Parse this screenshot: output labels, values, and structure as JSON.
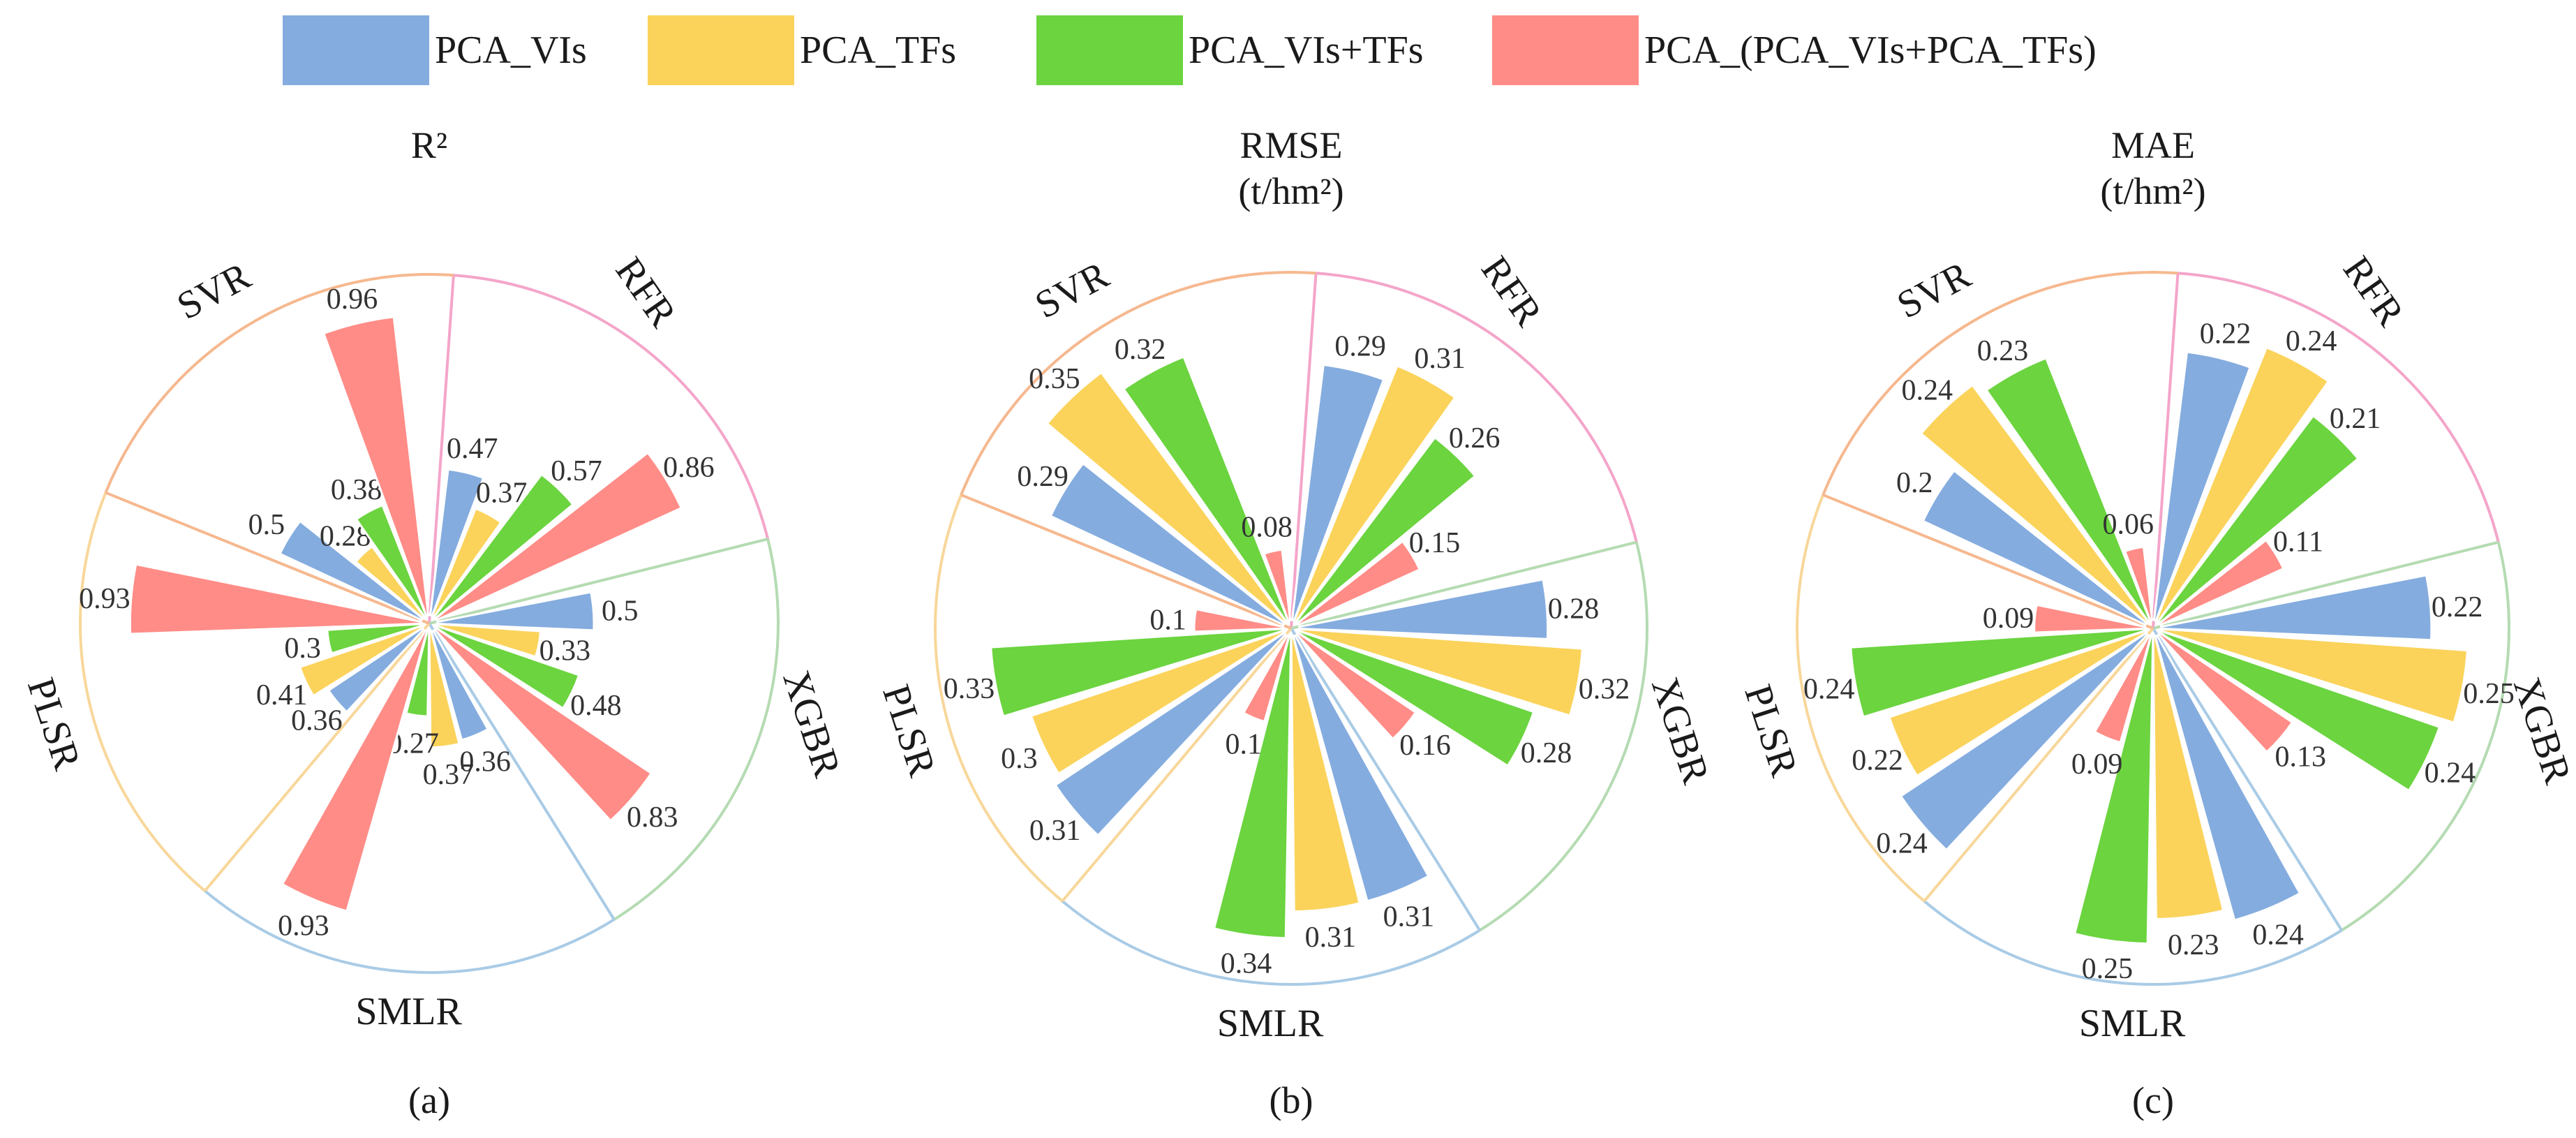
{
  "legend": [
    {
      "label": "PCA_VIs",
      "color": "#84acdf"
    },
    {
      "label": "PCA_TFs",
      "color": "#fbd35b"
    },
    {
      "label": "PCA_VIs+TFs",
      "color": "#6bd43f"
    },
    {
      "label": "PCA_(PCA_VIs+PCA_TFs)",
      "color": "#ff8c87"
    }
  ],
  "model_colors": {
    "RFR": "#f4a5c9",
    "XGBR": "#b5dbb2",
    "SMLR": "#a9cbe6",
    "PLSR": "#f8d79a",
    "SVR": "#f6b88f"
  },
  "chart_data": [
    {
      "type": "radial-bar",
      "title": "R²",
      "title_unit": "",
      "panel_label": "(a)",
      "rmax": 1.0,
      "categories": [
        "RFR",
        "XGBR",
        "SMLR",
        "PLSR",
        "SVR"
      ],
      "series": [
        {
          "name": "PCA_VIs",
          "values": [
            0.47,
            0.5,
            0.36,
            0.36,
            0.5
          ]
        },
        {
          "name": "PCA_TFs",
          "values": [
            0.37,
            0.33,
            0.37,
            0.41,
            0.28
          ]
        },
        {
          "name": "PCA_VIs+TFs",
          "values": [
            0.57,
            0.48,
            0.27,
            0.3,
            0.38
          ]
        },
        {
          "name": "PCA_(PCA_VIs+PCA_TFs)",
          "values": [
            0.86,
            0.83,
            0.93,
            0.93,
            0.96
          ]
        }
      ]
    },
    {
      "type": "radial-bar",
      "title": "RMSE",
      "title_unit": "(t/hm²)",
      "panel_label": "(b)",
      "rmax": 0.36,
      "categories": [
        "RFR",
        "XGBR",
        "SMLR",
        "PLSR",
        "SVR"
      ],
      "series": [
        {
          "name": "PCA_VIs",
          "values": [
            0.29,
            0.28,
            0.31,
            0.31,
            0.29
          ]
        },
        {
          "name": "PCA_TFs",
          "values": [
            0.31,
            0.32,
            0.31,
            0.3,
            0.35
          ]
        },
        {
          "name": "PCA_VIs+TFs",
          "values": [
            0.26,
            0.28,
            0.34,
            0.33,
            0.32
          ]
        },
        {
          "name": "PCA_(PCA_VIs+PCA_TFs)",
          "values": [
            0.15,
            0.16,
            0.1,
            0.1,
            0.08
          ]
        }
      ]
    },
    {
      "type": "radial-bar",
      "title": "MAE",
      "title_unit": "(t/hm²)",
      "panel_label": "(c)",
      "rmax": 0.26,
      "categories": [
        "RFR",
        "XGBR",
        "SMLR",
        "PLSR",
        "SVR"
      ],
      "series": [
        {
          "name": "PCA_VIs",
          "values": [
            0.22,
            0.22,
            0.24,
            0.24,
            0.2
          ]
        },
        {
          "name": "PCA_TFs",
          "values": [
            0.24,
            0.25,
            0.23,
            0.22,
            0.24
          ]
        },
        {
          "name": "PCA_VIs+TFs",
          "values": [
            0.21,
            0.24,
            0.25,
            0.24,
            0.23
          ]
        },
        {
          "name": "PCA_(PCA_VIs+PCA_TFs)",
          "values": [
            0.11,
            0.13,
            0.09,
            0.09,
            0.06
          ]
        }
      ]
    }
  ]
}
